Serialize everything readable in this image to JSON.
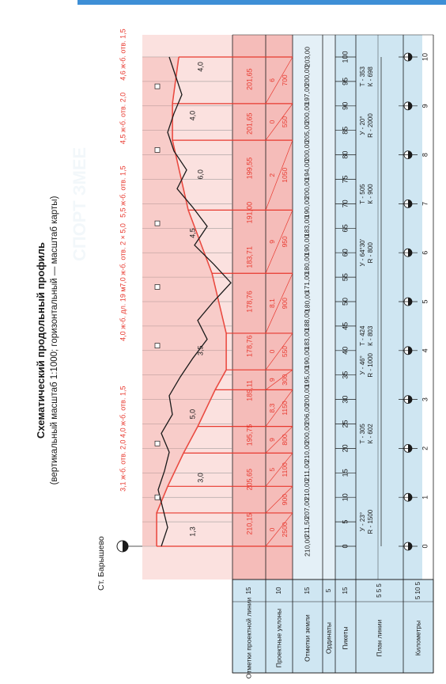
{
  "title": "Схематический продольный профиль",
  "subtitle": "(вертикальный масштаб 1:1000; горизонтальный — масштаб карты)",
  "station": "Ст. Барышево",
  "row_labels": [
    {
      "label": "Отметки проектной линии",
      "num": "15"
    },
    {
      "label": "Проектные уклоны",
      "num": "10"
    },
    {
      "label": "Отметки земли",
      "num": "15"
    },
    {
      "label": "Ординаты",
      "num": "5"
    },
    {
      "label": "Пикеты",
      "num": "15"
    },
    {
      "label": "План линии",
      "num": "5 5 5"
    },
    {
      "label": "Километры",
      "num": "5 10 5"
    }
  ],
  "pickets": [
    "0",
    "5",
    "10",
    "15",
    "20",
    "25",
    "30",
    "35",
    "40",
    "45",
    "50",
    "55",
    "60",
    "65",
    "70",
    "75",
    "80",
    "85",
    "90",
    "95",
    "100"
  ],
  "kilometers": [
    "0",
    "1",
    "2",
    "3",
    "4",
    "5",
    "6",
    "7",
    "8",
    "9",
    "10"
  ],
  "design_marks": [
    "210,15",
    "205,65",
    "195,75",
    "189,11",
    "178,76",
    "178,76",
    "183,71",
    "191,00",
    "199,55",
    "201,65",
    "201,65"
  ],
  "ground_marks": [
    "210,00",
    "211,50",
    "207,00",
    "210,00",
    "211,00",
    "210,00",
    "200,00",
    "206,00",
    "200,00",
    "195,00",
    "190,00",
    "183,00",
    "188,00",
    "180,00",
    "171,00",
    "180,00",
    "190,00",
    "183,00",
    "190,00",
    "200,00",
    "194,00",
    "200,00",
    "205,00",
    "200,00",
    "197,00",
    "200,00",
    "203,00"
  ],
  "gradients": [
    {
      "slope": "0",
      "length": "2500"
    },
    {
      "slope": "",
      "length": "900"
    },
    {
      "slope": "5",
      "length": "1100"
    },
    {
      "slope": "9",
      "length": "800"
    },
    {
      "slope": "8,3",
      "length": "1150"
    },
    {
      "slope": "9",
      "length": "300"
    },
    {
      "slope": "0",
      "length": "550"
    },
    {
      "slope": "8,1",
      "length": "900"
    },
    {
      "slope": "9",
      "length": "950"
    },
    {
      "slope": "2",
      "length": "1050"
    },
    {
      "slope": "0",
      "length": "550"
    },
    {
      "slope": "6",
      "length": "700"
    }
  ],
  "structures": [
    "3,1 ж-б. отв. 2,0",
    "4,0 ж-б. отв. 1,5",
    "4,0 ж-б. дл. 19 м",
    "7,0 ж-б. отв. 2 × 5,0",
    "5,5 ж-б. отв. 1,5",
    "4,5 ж-б. отв. 2,0",
    "4,6 ж-б. отв. 1,5"
  ],
  "cut_fill": [
    "1,3",
    "3,0",
    "5,0",
    "3,5",
    "4,5",
    "6,0",
    "4,0",
    "4,0"
  ],
  "curves": [
    {
      "angle": "У - 23°",
      "radius": "R - 1500"
    },
    {
      "angle": "Т - 305",
      "radius": "К - 602"
    },
    {
      "angle": "У - 46°",
      "radius": "R - 1000"
    },
    {
      "angle": "Т - 424",
      "radius": "К - 803"
    },
    {
      "angle": "У - 64°30'",
      "radius": "R - 800"
    },
    {
      "angle": "Т - 505",
      "radius": "К - 900"
    },
    {
      "angle": "У - 20°",
      "radius": "R - 2000"
    },
    {
      "angle": "Т - 353",
      "radius": "К - 698"
    }
  ],
  "watermark": "СПОРТ ЗМЕЕ",
  "colors": {
    "red": "#e8392f",
    "pink": "#f5bcb9",
    "light_pink": "#fbe1df",
    "blue": "#cfe6f2",
    "dark": "#1a1a1a"
  }
}
